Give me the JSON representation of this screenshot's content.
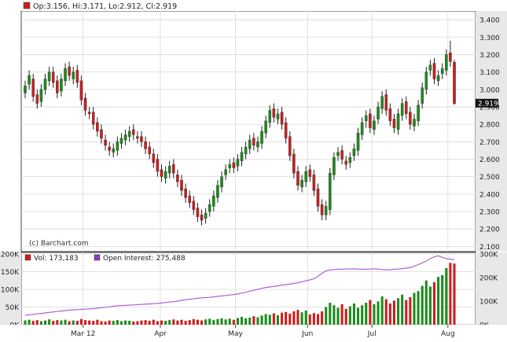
{
  "header": {
    "ohlc_label": "Op:3.156, Hi:3.171, Lo:2.912, Cl:2.919",
    "vol_label": "Vol: 173,183",
    "oi_label": "Open Interest: 275,488",
    "watermark": "(c) Barchart.com",
    "last_price_label": "2.919"
  },
  "colors": {
    "up": "#1c8c1c",
    "down": "#cc1e1e",
    "wick": "#222222",
    "open_interest": "#b15fd6",
    "axis_bg": "#e8e8e8",
    "grid": "#d9d9d9",
    "price_tag_bg": "#111111"
  },
  "chart_data": [
    {
      "type": "candlestick",
      "title": "",
      "xlabel": "",
      "ylabel": "",
      "x_ticks": [
        "Mar 12",
        "Apr",
        "May",
        "Jun",
        "Jul",
        "Aug"
      ],
      "y_ticks": [
        "2.100",
        "2.200",
        "2.300",
        "2.400",
        "2.500",
        "2.600",
        "2.700",
        "2.800",
        "2.900",
        "3.000",
        "3.100",
        "3.200",
        "3.300",
        "3.400"
      ],
      "ylim": [
        2.07,
        3.45
      ],
      "grid": true,
      "last_close": 2.919,
      "close": [
        3.02,
        3.08,
        2.96,
        2.92,
        3.0,
        3.06,
        3.1,
        3.04,
        2.98,
        3.06,
        3.12,
        3.08,
        3.1,
        3.04,
        2.94,
        2.88,
        2.86,
        2.8,
        2.76,
        2.72,
        2.68,
        2.65,
        2.66,
        2.7,
        2.72,
        2.74,
        2.76,
        2.74,
        2.72,
        2.7,
        2.66,
        2.63,
        2.58,
        2.53,
        2.5,
        2.53,
        2.56,
        2.52,
        2.47,
        2.42,
        2.38,
        2.35,
        2.31,
        2.27,
        2.25,
        2.29,
        2.34,
        2.39,
        2.45,
        2.5,
        2.54,
        2.57,
        2.55,
        2.6,
        2.64,
        2.67,
        2.71,
        2.68,
        2.7,
        2.76,
        2.82,
        2.88,
        2.84,
        2.86,
        2.8,
        2.72,
        2.62,
        2.52,
        2.45,
        2.48,
        2.53,
        2.5,
        2.42,
        2.33,
        2.28,
        2.33,
        2.52,
        2.61,
        2.64,
        2.6,
        2.57,
        2.61,
        2.66,
        2.75,
        2.81,
        2.85,
        2.78,
        2.82,
        2.9,
        2.96,
        2.88,
        2.82,
        2.78,
        2.86,
        2.92,
        2.86,
        2.8,
        2.83,
        2.91,
        3.01,
        3.1,
        3.14,
        3.06,
        3.08,
        3.12,
        3.2,
        3.16,
        2.919
      ],
      "open": [
        2.98,
        3.03,
        3.06,
        2.97,
        2.93,
        3.0,
        3.05,
        3.1,
        3.05,
        2.99,
        3.05,
        3.13,
        3.06,
        3.11,
        3.05,
        2.95,
        2.87,
        2.87,
        2.81,
        2.77,
        2.71,
        2.67,
        2.64,
        2.65,
        2.69,
        2.71,
        2.73,
        2.77,
        2.73,
        2.73,
        2.7,
        2.67,
        2.63,
        2.6,
        2.54,
        2.49,
        2.52,
        2.57,
        2.51,
        2.48,
        2.43,
        2.39,
        2.36,
        2.32,
        2.28,
        2.26,
        2.3,
        2.33,
        2.38,
        2.44,
        2.51,
        2.55,
        2.58,
        2.56,
        2.59,
        2.63,
        2.66,
        2.72,
        2.67,
        2.69,
        2.75,
        2.81,
        2.89,
        2.83,
        2.87,
        2.81,
        2.73,
        2.63,
        2.53,
        2.44,
        2.47,
        2.54,
        2.51,
        2.43,
        2.34,
        2.28,
        2.31,
        2.51,
        2.62,
        2.65,
        2.59,
        2.58,
        2.62,
        2.65,
        2.74,
        2.82,
        2.86,
        2.77,
        2.83,
        2.89,
        2.97,
        2.89,
        2.83,
        2.77,
        2.85,
        2.93,
        2.87,
        2.79,
        2.82,
        2.92,
        3.0,
        3.11,
        3.15,
        3.05,
        3.09,
        3.11,
        3.21,
        3.156
      ],
      "high": [
        3.05,
        3.11,
        3.09,
        3.0,
        3.03,
        3.09,
        3.13,
        3.13,
        3.08,
        3.09,
        3.15,
        3.16,
        3.13,
        3.14,
        3.08,
        2.98,
        2.9,
        2.9,
        2.84,
        2.8,
        2.74,
        2.7,
        2.69,
        2.73,
        2.75,
        2.77,
        2.79,
        2.8,
        2.76,
        2.76,
        2.73,
        2.7,
        2.66,
        2.63,
        2.57,
        2.56,
        2.59,
        2.6,
        2.54,
        2.51,
        2.46,
        2.42,
        2.39,
        2.35,
        2.31,
        2.32,
        2.37,
        2.42,
        2.48,
        2.53,
        2.57,
        2.6,
        2.61,
        2.63,
        2.67,
        2.7,
        2.74,
        2.75,
        2.73,
        2.79,
        2.85,
        2.91,
        2.92,
        2.89,
        2.9,
        2.84,
        2.76,
        2.66,
        2.56,
        2.51,
        2.56,
        2.57,
        2.54,
        2.46,
        2.37,
        2.36,
        2.55,
        2.64,
        2.67,
        2.68,
        2.62,
        2.64,
        2.69,
        2.78,
        2.84,
        2.88,
        2.89,
        2.85,
        2.93,
        2.99,
        3.0,
        2.92,
        2.86,
        2.89,
        2.95,
        2.96,
        2.9,
        2.86,
        2.94,
        3.04,
        3.13,
        3.17,
        3.18,
        3.11,
        3.15,
        3.23,
        3.28,
        3.171
      ],
      "low": [
        2.95,
        3.0,
        2.93,
        2.89,
        2.9,
        2.97,
        3.02,
        3.01,
        2.95,
        2.96,
        3.02,
        3.05,
        3.03,
        3.01,
        2.91,
        2.85,
        2.83,
        2.77,
        2.73,
        2.69,
        2.65,
        2.62,
        2.61,
        2.62,
        2.66,
        2.68,
        2.7,
        2.71,
        2.69,
        2.67,
        2.63,
        2.6,
        2.55,
        2.5,
        2.47,
        2.46,
        2.49,
        2.49,
        2.44,
        2.39,
        2.35,
        2.32,
        2.28,
        2.24,
        2.22,
        2.23,
        2.27,
        2.3,
        2.35,
        2.41,
        2.48,
        2.52,
        2.52,
        2.53,
        2.56,
        2.6,
        2.63,
        2.65,
        2.64,
        2.66,
        2.72,
        2.78,
        2.81,
        2.8,
        2.77,
        2.69,
        2.59,
        2.49,
        2.42,
        2.41,
        2.44,
        2.47,
        2.39,
        2.3,
        2.25,
        2.25,
        2.28,
        2.48,
        2.59,
        2.57,
        2.54,
        2.55,
        2.59,
        2.62,
        2.71,
        2.78,
        2.75,
        2.74,
        2.8,
        2.86,
        2.85,
        2.79,
        2.75,
        2.74,
        2.82,
        2.83,
        2.77,
        2.76,
        2.79,
        2.89,
        2.97,
        3.08,
        3.03,
        3.02,
        3.06,
        3.08,
        3.13,
        2.912
      ]
    },
    {
      "type": "bar",
      "title": "",
      "series": [
        {
          "name": "Vol",
          "values": [
            12,
            14,
            11,
            13,
            10,
            12,
            15,
            11,
            13,
            12,
            14,
            10,
            12,
            11,
            16,
            13,
            12,
            11,
            14,
            10,
            9,
            12,
            11,
            13,
            10,
            12,
            11,
            9,
            10,
            12,
            13,
            11,
            14,
            10,
            12,
            11,
            13,
            15,
            12,
            14,
            11,
            13,
            16,
            14,
            12,
            15,
            17,
            13,
            16,
            18,
            15,
            17,
            14,
            19,
            22,
            18,
            20,
            24,
            21,
            26,
            30,
            28,
            32,
            27,
            34,
            36,
            31,
            38,
            42,
            35,
            40,
            29,
            33,
            30,
            38,
            50,
            62,
            55,
            48,
            58,
            45,
            52,
            60,
            48,
            55,
            62,
            70,
            58,
            66,
            80,
            72,
            60,
            68,
            75,
            85,
            70,
            78,
            90,
            95,
            110,
            125,
            108,
            120,
            135,
            140,
            160,
            175,
            173
          ]
        },
        {
          "name": "Open Interest",
          "type": "line",
          "values": [
            40,
            42,
            44,
            46,
            48,
            50,
            52,
            54,
            56,
            58,
            60,
            62,
            63,
            64,
            65,
            66,
            67,
            68,
            70,
            72,
            74,
            76,
            78,
            80,
            81,
            82,
            83,
            84,
            85,
            86,
            87,
            88,
            89,
            90,
            92,
            94,
            96,
            98,
            100,
            103,
            106,
            108,
            110,
            112,
            114,
            115,
            116,
            118,
            120,
            122,
            124,
            126,
            128,
            130,
            134,
            138,
            142,
            146,
            150,
            154,
            158,
            160,
            162,
            165,
            168,
            170,
            172,
            175,
            178,
            182,
            186,
            190,
            195,
            205,
            218,
            228,
            232,
            234,
            235,
            235,
            236,
            236,
            237,
            236,
            235,
            235,
            236,
            237,
            236,
            234,
            232,
            233,
            235,
            236,
            238,
            240,
            242,
            248,
            255,
            262,
            270,
            280,
            288,
            292,
            286,
            280,
            278,
            275.488
          ]
        }
      ],
      "left_ticks": [
        "0K",
        "50K",
        "100K",
        "150K",
        "200K"
      ],
      "right_ticks": [
        "0K",
        "100K",
        "200K",
        "300K"
      ],
      "x_ticks": [
        "Mar 12",
        "Apr",
        "May",
        "Jun",
        "Jul",
        "Aug"
      ],
      "ylim_left": [
        0,
        200
      ],
      "ylim_right": [
        0,
        300
      ],
      "grid": true
    }
  ]
}
